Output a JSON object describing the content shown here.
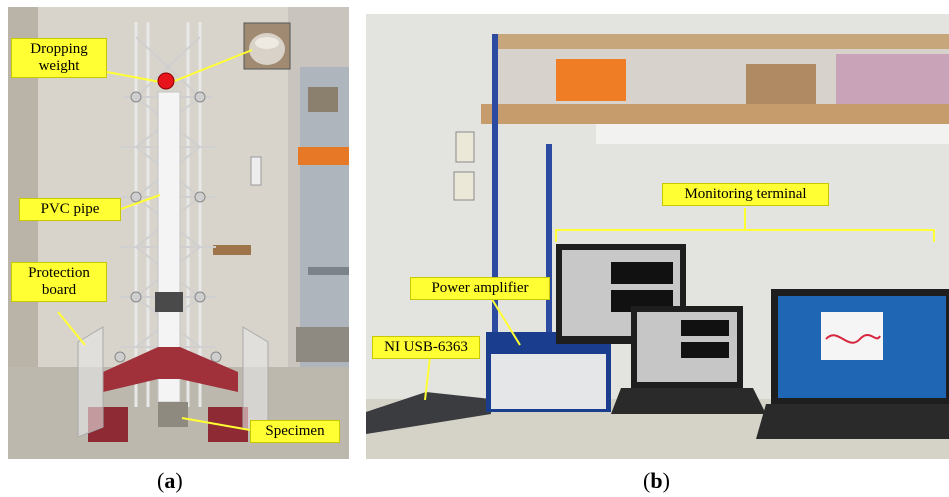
{
  "panel_a": {
    "labels": {
      "dropping_weight_line1": "Dropping",
      "dropping_weight_line2": "weight",
      "pvc_pipe": "PVC pipe",
      "protection_board_line1": "Protection",
      "protection_board_line2": "board",
      "specimen": "Specimen"
    },
    "caption_letter": "a"
  },
  "panel_b": {
    "labels": {
      "monitoring_terminal": "Monitoring terminal",
      "power_amplifier": "Power amplifier",
      "ni_usb": "NI USB-6363"
    },
    "caption_letter": "b"
  },
  "colors": {
    "label_fill": "#ffff33",
    "weight_marker": "#e8141c",
    "pointer_line": "#ffff33"
  }
}
